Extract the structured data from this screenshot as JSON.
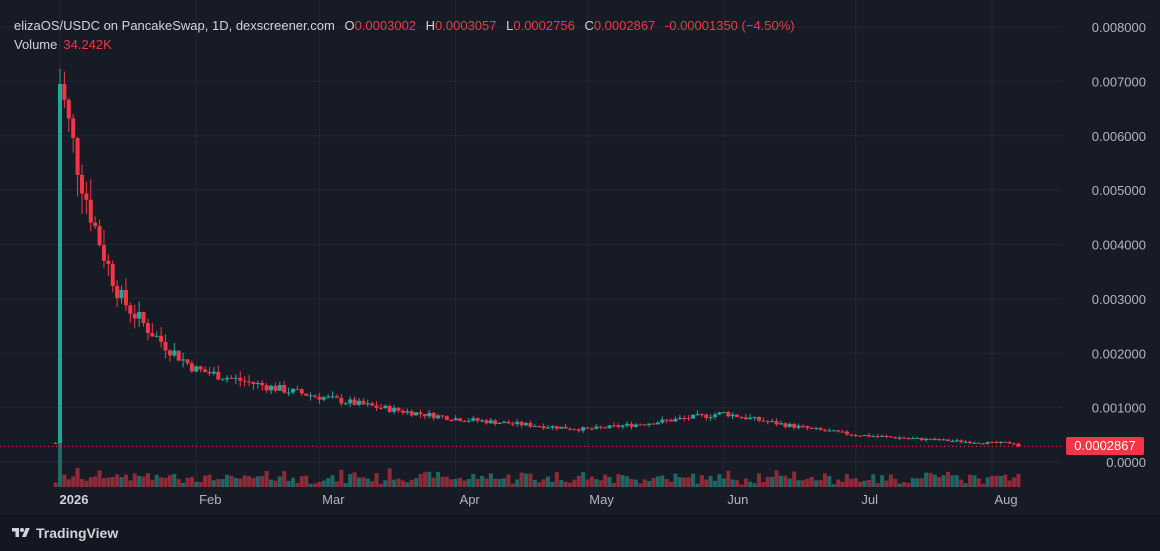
{
  "legend": {
    "symbol": "elizaOS/USDC on PancakeSwap, 1D, dexscreener.com",
    "open_label": "O",
    "open": "0.0003002",
    "high_label": "H",
    "high": "0.0003057",
    "low_label": "L",
    "low": "0.0002756",
    "close_label": "C",
    "close": "0.0002867",
    "change": "-0.00001350 (−4.50%)"
  },
  "volume_legend": {
    "label": "Volume",
    "value": "34.242K"
  },
  "last_price_tag": "0.0002867",
  "branding": {
    "name": "TradingView",
    "icon": "tradingview-logo-icon"
  },
  "colors": {
    "up": "#26a69a",
    "down": "#f23645",
    "background": "#171b26",
    "grid": "#232733"
  },
  "chart_data": {
    "type": "candlestick",
    "y_axis": {
      "ticks": [
        "0.008000",
        "0.007000",
        "0.006000",
        "0.005000",
        "0.004000",
        "0.003000",
        "0.002000",
        "0.001000",
        "0.0000"
      ],
      "ylim": [
        0,
        0.008
      ]
    },
    "x_axis": {
      "labels": [
        "2026",
        "Feb",
        "Mar",
        "Apr",
        "May",
        "Jun",
        "Jul",
        "Aug"
      ]
    },
    "last_price": 0.0002867,
    "approx_close_by_month_start": [
      {
        "date": "2026-01-01",
        "close": 0.007
      },
      {
        "date": "2026-01-15",
        "close": 0.003
      },
      {
        "date": "2026-02-01",
        "close": 0.0017
      },
      {
        "date": "2026-03-01",
        "close": 0.0012
      },
      {
        "date": "2026-04-01",
        "close": 0.0008
      },
      {
        "date": "2026-05-01",
        "close": 0.0006
      },
      {
        "date": "2026-06-01",
        "close": 0.0009
      },
      {
        "date": "2026-07-01",
        "close": 0.0005
      },
      {
        "date": "2026-08-01",
        "close": 0.00035
      }
    ]
  }
}
